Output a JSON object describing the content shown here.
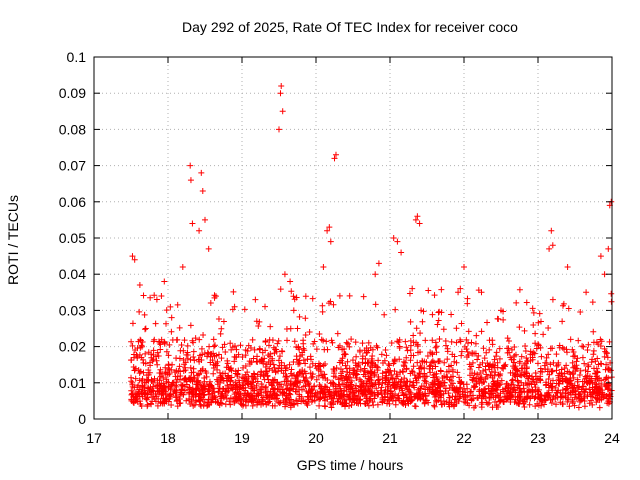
{
  "chart_data": {
    "type": "scatter",
    "title": "Day 292 of 2025, Rate Of TEC Index for receiver coco",
    "xlabel": "GPS time / hours",
    "ylabel": "ROTI / TECUs",
    "xlim": [
      17,
      24
    ],
    "ylim": [
      0,
      0.1
    ],
    "x_ticks": [
      "17",
      "18",
      "19",
      "20",
      "21",
      "22",
      "23",
      "24"
    ],
    "y_ticks": [
      "0",
      "0.01",
      "0.02",
      "0.03",
      "0.04",
      "0.05",
      "0.06",
      "0.07",
      "0.08",
      "0.09",
      "0.1"
    ],
    "grid": true,
    "marker": "+",
    "marker_color": "#ff0000",
    "x_start": 17.5,
    "x_end": 24.0,
    "series": [
      {
        "name": "ROTI",
        "x": [
          17.52,
          17.55,
          17.62,
          17.7,
          17.85,
          17.95,
          18.05,
          18.2,
          18.3,
          18.31,
          18.33,
          18.42,
          18.45,
          18.47,
          18.5,
          18.55,
          18.9,
          19.2,
          19.5,
          19.52,
          19.53,
          19.55,
          19.58,
          19.65,
          19.7,
          19.75,
          20.1,
          20.15,
          20.18,
          20.2,
          20.25,
          20.27,
          20.8,
          20.85,
          21.05,
          21.1,
          21.15,
          21.3,
          21.35,
          21.37,
          21.4,
          21.42,
          21.95,
          22.0,
          22.5,
          23.15,
          23.18,
          23.2,
          23.4,
          23.65,
          23.85,
          23.9,
          23.95,
          23.97,
          23.99
        ],
        "y": [
          0.045,
          0.044,
          0.037,
          0.025,
          0.033,
          0.038,
          0.028,
          0.042,
          0.07,
          0.066,
          0.054,
          0.052,
          0.068,
          0.063,
          0.055,
          0.047,
          0.031,
          0.027,
          0.08,
          0.09,
          0.092,
          0.085,
          0.04,
          0.038,
          0.03,
          0.025,
          0.042,
          0.052,
          0.053,
          0.049,
          0.072,
          0.073,
          0.04,
          0.043,
          0.05,
          0.049,
          0.046,
          0.036,
          0.055,
          0.056,
          0.054,
          0.03,
          0.036,
          0.042,
          0.03,
          0.047,
          0.052,
          0.048,
          0.042,
          0.035,
          0.045,
          0.04,
          0.047,
          0.059,
          0.06
        ]
      }
    ],
    "background_cloud": {
      "description": "dense scatter of ROTI samples from 17.5 to 24 h, mostly 0.003-0.03 TECU",
      "typical_min": 0.003,
      "typical_max": 0.03,
      "sample_count": 2600
    }
  }
}
